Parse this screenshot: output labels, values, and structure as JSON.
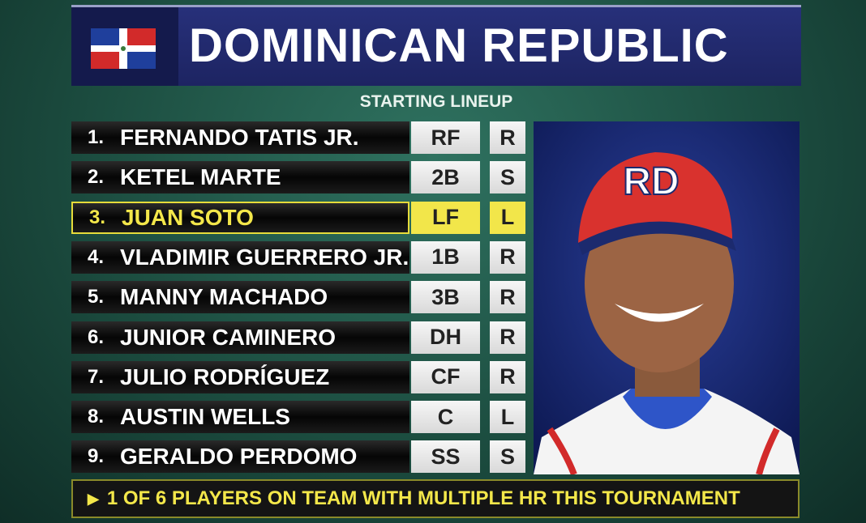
{
  "header": {
    "title": "DOMINICAN REPUBLIC",
    "subtitle": "STARTING LINEUP"
  },
  "lineup": [
    {
      "number": "1.",
      "name": "FERNANDO TATIS JR.",
      "position": "RF",
      "bats": "R",
      "highlighted": false
    },
    {
      "number": "2.",
      "name": "KETEL MARTE",
      "position": "2B",
      "bats": "S",
      "highlighted": false
    },
    {
      "number": "3.",
      "name": "JUAN SOTO",
      "position": "LF",
      "bats": "L",
      "highlighted": true
    },
    {
      "number": "4.",
      "name": "VLADIMIR GUERRERO JR.",
      "position": "1B",
      "bats": "R",
      "highlighted": false
    },
    {
      "number": "5.",
      "name": "MANNY MACHADO",
      "position": "3B",
      "bats": "R",
      "highlighted": false
    },
    {
      "number": "6.",
      "name": "JUNIOR CAMINERO",
      "position": "DH",
      "bats": "R",
      "highlighted": false
    },
    {
      "number": "7.",
      "name": "JULIO RODRÍGUEZ",
      "position": "CF",
      "bats": "R",
      "highlighted": false
    },
    {
      "number": "8.",
      "name": "AUSTIN WELLS",
      "position": "C",
      "bats": "L",
      "highlighted": false
    },
    {
      "number": "9.",
      "name": "GERALDO PERDOMO",
      "position": "SS",
      "bats": "S",
      "highlighted": false
    }
  ],
  "footer": {
    "note": "1 OF 6 PLAYERS ON TEAM WITH MULTIPLE HR THIS TOURNAMENT"
  }
}
